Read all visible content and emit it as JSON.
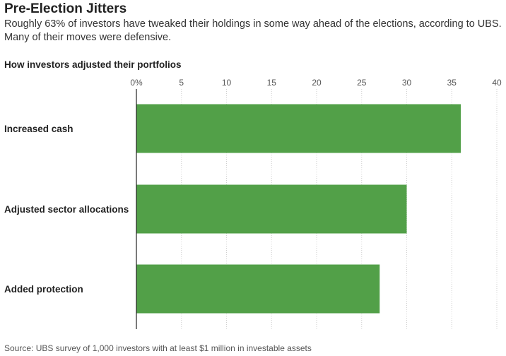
{
  "title": "Pre-Election Jitters",
  "subtitle": "Roughly 63% of investors have tweaked their holdings in some way ahead of the elections, according to UBS. Many of their moves were defensive.",
  "chart_heading": "How investors adjusted their portfolios",
  "source": "Source: UBS survey of 1,000 investors with at least $1 million in investable assets",
  "colors": {
    "bar": "#52a048",
    "grid": "#cfcfcf",
    "axis": "#222222"
  },
  "chart_data": {
    "type": "bar",
    "orientation": "horizontal",
    "categories": [
      "Increased cash",
      "Adjusted sector allocations",
      "Added protection"
    ],
    "values": [
      36,
      30,
      27
    ],
    "xlim": [
      0,
      40
    ],
    "ticks": [
      0,
      5,
      10,
      15,
      20,
      25,
      30,
      35,
      40
    ],
    "tick_labels": [
      "0%",
      "5",
      "10",
      "15",
      "20",
      "25",
      "30",
      "35",
      "40"
    ],
    "grid": true,
    "tick_position": "top"
  }
}
